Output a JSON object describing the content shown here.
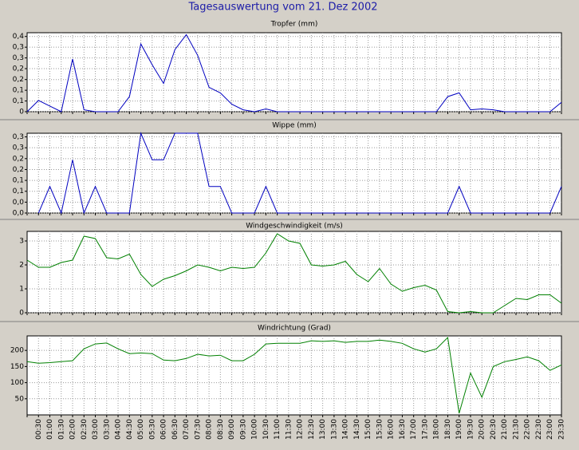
{
  "title": "Tagesauswertung vom 21. Dez 2002",
  "chart_data": [
    {
      "type": "line",
      "title": "Tropfer (mm)",
      "color": "#0000c0",
      "grid": true,
      "values": [
        0,
        0.06,
        0.03,
        0,
        0.28,
        0.01,
        0,
        0,
        0,
        0.08,
        0.36,
        0.25,
        0.15,
        0.33,
        0.41,
        0.3,
        0.13,
        0.1,
        0.04,
        0.01,
        0,
        0.015,
        0,
        0,
        0,
        0,
        0,
        0,
        0,
        0,
        0,
        0,
        0,
        0,
        0,
        0,
        0,
        0.08,
        0.1,
        0.01,
        0.015,
        0.01,
        0,
        0,
        0,
        0,
        0,
        0.05
      ],
      "ylim": [
        0,
        0.42
      ],
      "yticks": [
        0,
        {
          "value": 0.057,
          "label": "0,1"
        },
        {
          "value": 0.114,
          "label": "0,1"
        },
        {
          "value": 0.171,
          "label": "0,2"
        },
        {
          "value": 0.229,
          "label": "0,2"
        },
        {
          "value": 0.286,
          "label": "0,3"
        },
        {
          "value": 0.343,
          "label": "0,3"
        },
        {
          "value": 0.4,
          "label": "0,4"
        }
      ]
    },
    {
      "type": "line",
      "title": "Wippe (mm)",
      "color": "#0000c0",
      "grid": true,
      "values": [
        null,
        0,
        0.11,
        0,
        0.22,
        0,
        0.11,
        0,
        0,
        0,
        0.33,
        0.22,
        0.22,
        0.33,
        0.33,
        0.33,
        0.11,
        0.11,
        0,
        0,
        0,
        0.11,
        0,
        0,
        0,
        0,
        0,
        0,
        0,
        0,
        0,
        0,
        0,
        0,
        0,
        0,
        0,
        0,
        0.11,
        0,
        0,
        0,
        0,
        0,
        0,
        0,
        0,
        0.11
      ],
      "ylim": [
        0,
        0.33
      ],
      "yticks": [
        {
          "value": 0,
          "label": "0,0"
        },
        {
          "value": 0.045,
          "label": "0,0"
        },
        {
          "value": 0.09,
          "label": "0,1"
        },
        {
          "value": 0.135,
          "label": "0,1"
        },
        {
          "value": 0.18,
          "label": "0,2"
        },
        {
          "value": 0.225,
          "label": "0,2"
        },
        {
          "value": 0.27,
          "label": "0,3"
        },
        {
          "value": 0.315,
          "label": "0,3"
        }
      ]
    },
    {
      "type": "line",
      "title": "Windgeschwindigkeit (m/s)",
      "color": "#008000",
      "grid": true,
      "values": [
        2.2,
        1.9,
        1.9,
        2.1,
        2.2,
        3.2,
        3.1,
        2.3,
        2.25,
        2.45,
        1.6,
        1.1,
        1.4,
        1.55,
        1.75,
        2.0,
        1.9,
        1.75,
        1.9,
        1.85,
        1.9,
        2.5,
        3.3,
        3.0,
        2.9,
        2.0,
        1.95,
        2.0,
        2.15,
        1.6,
        1.3,
        1.85,
        1.2,
        0.9,
        1.05,
        1.15,
        0.95,
        0.05,
        0,
        0.05,
        0,
        0,
        0.3,
        0.6,
        0.55,
        0.75,
        0.75,
        0.4
      ],
      "ylim": [
        0,
        3.4
      ],
      "yticks": [
        0,
        1,
        2,
        3
      ]
    },
    {
      "type": "line",
      "title": "Windrichtung (Grad)",
      "color": "#008000",
      "grid": true,
      "categories": [
        null,
        "00:30",
        "01:00",
        "01:30",
        "02:00",
        "02:30",
        "03:00",
        "03:30",
        "04:00",
        "04:30",
        "05:00",
        "05:30",
        "06:00",
        "06:30",
        "07:00",
        "07:30",
        "08:00",
        "08:30",
        "09:00",
        "09:30",
        "10:00",
        "10:30",
        "11:00",
        "11:30",
        "12:00",
        "12:30",
        "13:00",
        "13:30",
        "14:00",
        "14:30",
        "15:00",
        "15:30",
        "16:00",
        "16:30",
        "17:00",
        "17:30",
        "18:00",
        "18:30",
        "19:00",
        "19:30",
        "20:00",
        "20:30",
        "21:00",
        "21:30",
        "22:00",
        "22:30",
        "23:00",
        "23:30"
      ],
      "values": [
        165,
        160,
        162,
        165,
        168,
        205,
        220,
        223,
        205,
        190,
        192,
        190,
        170,
        168,
        175,
        188,
        183,
        185,
        168,
        168,
        188,
        220,
        222,
        222,
        222,
        230,
        228,
        230,
        225,
        228,
        228,
        232,
        228,
        222,
        205,
        195,
        205,
        240,
        5,
        130,
        55,
        150,
        165,
        172,
        180,
        168,
        138,
        155
      ],
      "ylim": [
        0,
        245
      ],
      "yticks": [
        50,
        100,
        150,
        200
      ]
    }
  ]
}
